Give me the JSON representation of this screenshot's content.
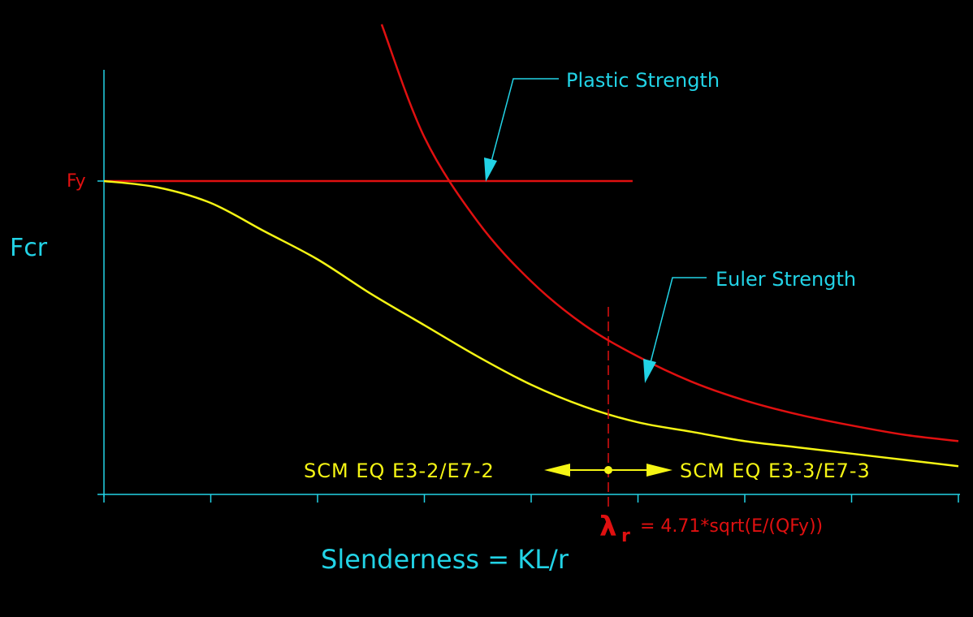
{
  "colors": {
    "background": "#000000",
    "axis": "#22d3e6",
    "plastic": "#e01010",
    "euler": "#e01010",
    "column_curve": "#f5f514",
    "annotation_text": "#22d3e6",
    "scm_text": "#f5f514",
    "lambda": "#e01010"
  },
  "chart_data": {
    "type": "line",
    "title": "",
    "xlabel": "Slenderness = KL/r",
    "ylabel": "Fcr",
    "y_tick_label": "Fy",
    "y_tick_value": 1.0,
    "xlim": [
      0,
      8
    ],
    "ylim": [
      0,
      1.5
    ],
    "x_ticks": [
      0,
      1,
      2,
      3,
      4,
      5,
      6,
      7,
      8
    ],
    "series": [
      {
        "name": "Plastic Strength",
        "color": "#e01010",
        "x": [
          0,
          4.95
        ],
        "y": [
          1.0,
          1.0
        ]
      },
      {
        "name": "Euler Strength",
        "color": "#e01010",
        "x": [
          2.6,
          3.0,
          3.5,
          4.0,
          4.5,
          5.0,
          5.5,
          6.0,
          6.5,
          7.0,
          7.5,
          8.0
        ],
        "y": [
          1.5,
          1.14,
          0.87,
          0.68,
          0.54,
          0.44,
          0.36,
          0.3,
          0.255,
          0.22,
          0.19,
          0.17
        ]
      },
      {
        "name": "",
        "color": "#f5f514",
        "x": [
          0,
          0.5,
          1.0,
          1.5,
          2.0,
          2.5,
          3.0,
          3.5,
          4.0,
          4.5,
          5.0,
          5.5,
          6.0,
          6.5,
          7.0,
          7.5,
          8.0
        ],
        "y": [
          1.0,
          0.98,
          0.93,
          0.84,
          0.75,
          0.64,
          0.54,
          0.44,
          0.35,
          0.28,
          0.23,
          0.2,
          0.17,
          0.15,
          0.13,
          0.11,
          0.09
        ]
      }
    ],
    "lambda_r_x": 4.71,
    "lambda_r_formula": "= 4.71*sqrt(E/(QFy))"
  },
  "annotations": {
    "plastic_label": "Plastic Strength",
    "euler_label": "Euler Strength",
    "left_equation": "SCM EQ E3-2/E7-2",
    "right_equation": "SCM EQ E3-3/E7-3",
    "lambda_symbol": "λ",
    "lambda_subscript": "r"
  }
}
